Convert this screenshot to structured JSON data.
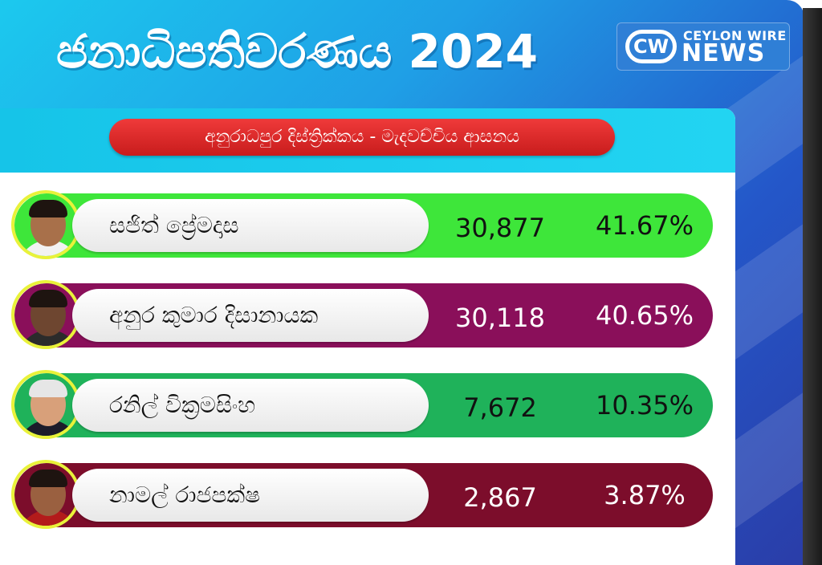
{
  "header": {
    "title": "ජනාධිපතිවරණය 2024",
    "logo": {
      "mark": "CW",
      "top": "CEYLON WIRE",
      "bottom": "NEWS"
    }
  },
  "subtitle": "අනුරාධපුර දිස්ත්‍රික්කය - මැදවච්චිය ආසනය",
  "candidates": [
    {
      "name": "සජිත් ප්‍රේමදාස",
      "votes": "30,877",
      "percent": "41.67%",
      "color": "#3ee63a",
      "text_color": "#111111"
    },
    {
      "name": "අනුර කුමාර දිසානායක",
      "votes": "30,118",
      "percent": "40.65%",
      "color": "#8a0f5a",
      "text_color": "#ffffff"
    },
    {
      "name": "රනිල් වික්‍රමසිංහ",
      "votes": "7,672",
      "percent": "10.35%",
      "color": "#1fb25a",
      "text_color": "#111111"
    },
    {
      "name": "නාමල් රාජපක්ෂ",
      "votes": "2,867",
      "percent": "3.87%",
      "color": "#7c0d2b",
      "text_color": "#ffffff"
    }
  ]
}
